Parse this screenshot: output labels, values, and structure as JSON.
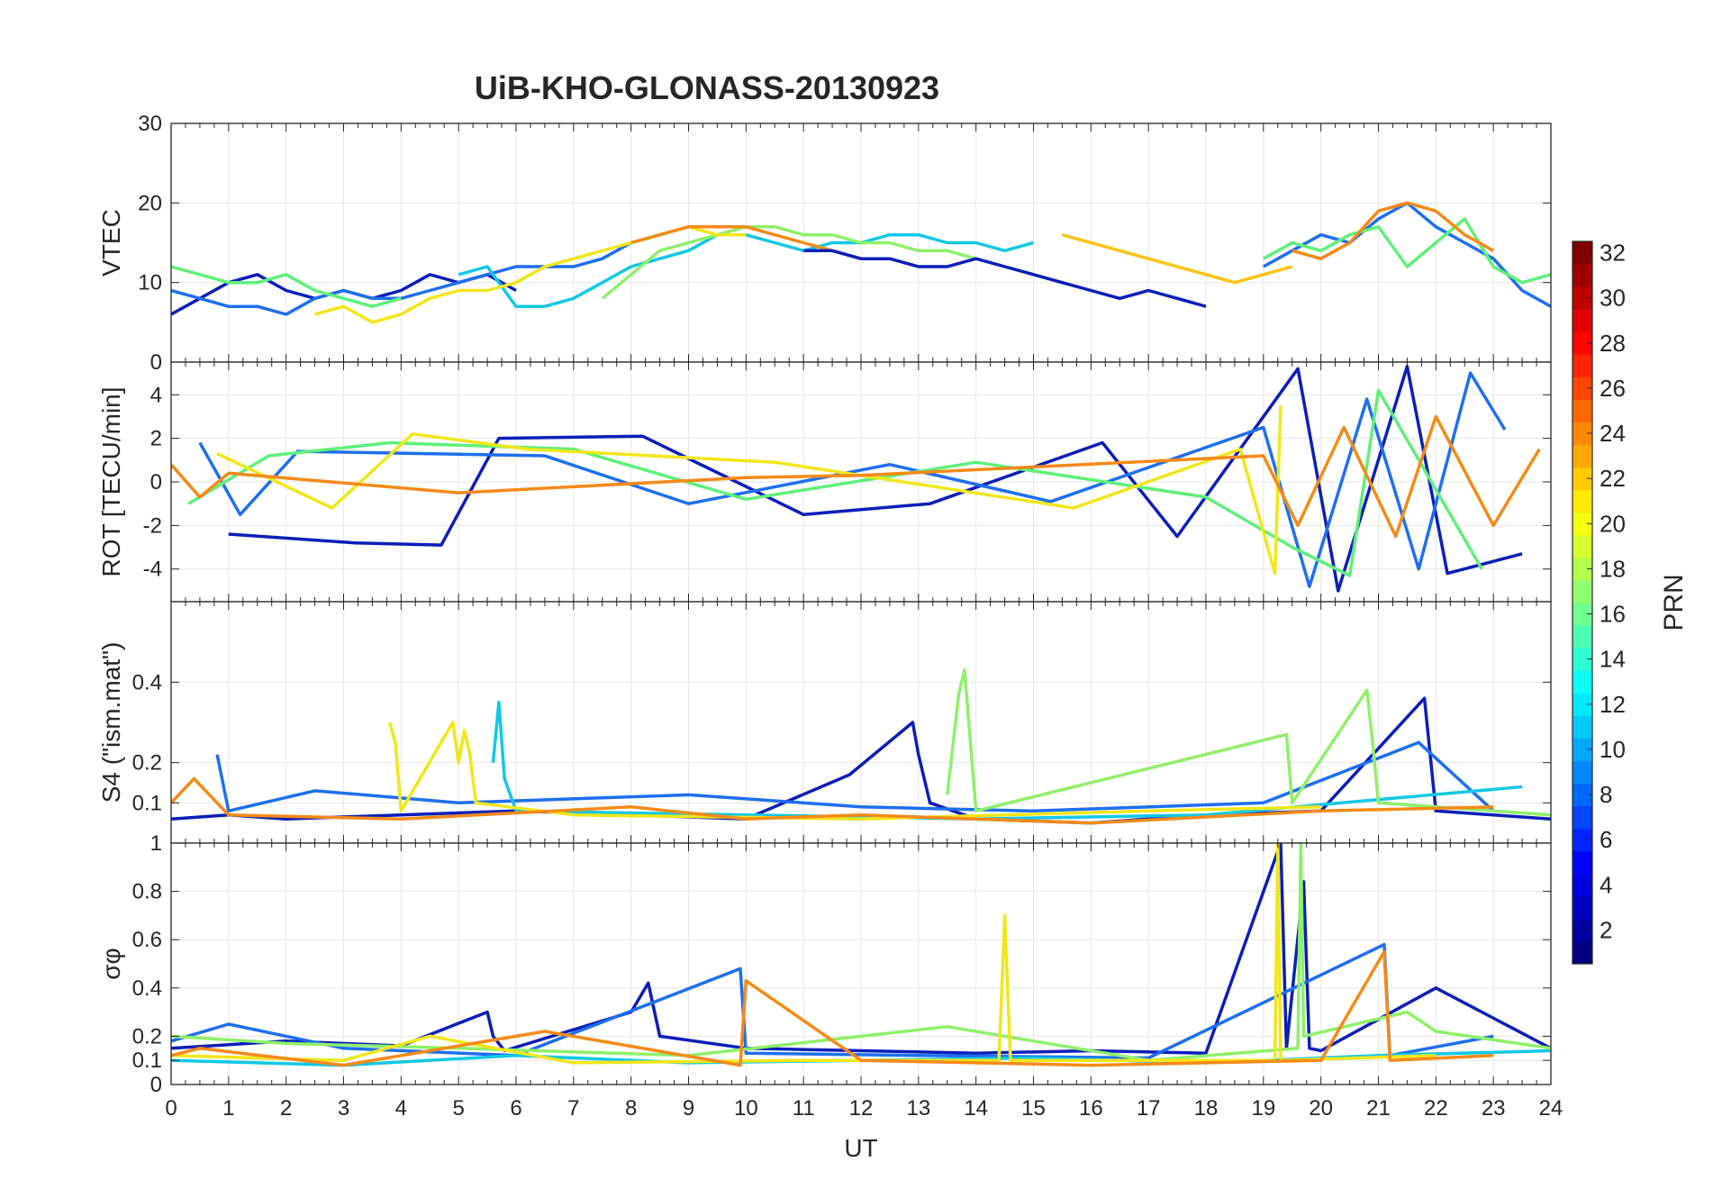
{
  "chart_data": [
    {
      "type": "line",
      "title": "UiB-KHO-GLONASS-20130923",
      "ylabel": "VTEC",
      "ylim": [
        0,
        30
      ],
      "yticks": [
        0,
        10,
        20,
        30
      ],
      "xlim": [
        0,
        24
      ],
      "grid": true,
      "series": [
        {
          "color": "#0a1fb8",
          "x": [
            0.0,
            0.5,
            1.0,
            1.5,
            2.0,
            2.5,
            3.0,
            3.5,
            4.0,
            4.5,
            5.0,
            5.5,
            6.0
          ],
          "y": [
            6,
            8,
            10,
            11,
            9,
            8,
            9,
            8,
            9,
            11,
            10,
            11,
            9
          ]
        },
        {
          "color": "#1e6ff0",
          "x": [
            0.0,
            0.5,
            1.0,
            1.5,
            2.0,
            2.5,
            3.0,
            3.5,
            4.0,
            4.5,
            5.0,
            5.5,
            6.0,
            6.5,
            7.0,
            7.5,
            8.0,
            8.5
          ],
          "y": [
            9,
            8,
            7,
            7,
            6,
            8,
            9,
            8,
            8,
            9,
            10,
            11,
            12,
            12,
            12,
            13,
            15,
            16
          ]
        },
        {
          "color": "#12c8e6",
          "x": [
            5.0,
            5.5,
            6.0,
            6.5,
            7.0,
            7.5,
            8.0,
            8.5,
            9.0,
            9.5,
            10.0,
            10.5,
            11.0,
            11.5,
            12.0,
            12.5,
            13.0,
            13.5,
            14.0,
            14.5,
            15.0
          ],
          "y": [
            11,
            12,
            7,
            7,
            8,
            10,
            12,
            13,
            14,
            16,
            16,
            15,
            14,
            15,
            15,
            16,
            16,
            15,
            15,
            14,
            15
          ]
        },
        {
          "color": "#5ff07a",
          "x": [
            0.0,
            0.5,
            1.0,
            1.5,
            2.0,
            2.5,
            3.0,
            3.5,
            4.0
          ],
          "y": [
            12,
            11,
            10,
            10,
            11,
            9,
            8,
            7,
            8
          ]
        },
        {
          "color": "#8ff06a",
          "x": [
            7.5,
            8.0,
            8.5,
            9.0,
            9.5,
            10.0,
            10.5,
            11.0,
            11.5,
            12.0,
            12.5,
            13.0,
            13.5,
            14.0
          ],
          "y": [
            8,
            11,
            14,
            15,
            16,
            17,
            17,
            16,
            16,
            15,
            15,
            14,
            14,
            13
          ]
        },
        {
          "color": "#f2e61a",
          "x": [
            2.5,
            3.0,
            3.5,
            4.0,
            4.5,
            5.0,
            5.5,
            6.0,
            6.5,
            7.0,
            7.5,
            8.0,
            8.5,
            9.0,
            9.5,
            10.0
          ],
          "y": [
            6,
            7,
            5,
            6,
            8,
            9,
            9,
            10,
            12,
            13,
            14,
            15,
            16,
            17,
            16,
            16
          ]
        },
        {
          "color": "#ffc20f",
          "x": [
            15.5,
            16.0,
            16.5,
            17.0,
            17.5,
            18.0,
            18.5,
            19.0,
            19.5
          ],
          "y": [
            16,
            15,
            14,
            13,
            12,
            11,
            10,
            11,
            12
          ]
        },
        {
          "color": "#f58a17",
          "x": [
            8.0,
            8.5,
            9.0,
            9.5,
            10.0,
            10.5,
            11.0,
            11.5,
            12.0
          ],
          "y": [
            15,
            16,
            17,
            17,
            17,
            16,
            15,
            14,
            13
          ]
        },
        {
          "color": "#0a1fb8",
          "x": [
            11.0,
            11.5,
            12.0,
            12.5,
            13.0,
            13.5,
            14.0,
            14.5,
            15.0,
            15.5,
            16.0,
            16.5,
            17.0,
            17.5,
            18.0
          ],
          "y": [
            14,
            14,
            13,
            13,
            12,
            12,
            13,
            12,
            11,
            10,
            9,
            8,
            9,
            8,
            7
          ]
        },
        {
          "color": "#1e6ff0",
          "x": [
            19.0,
            19.5,
            20.0,
            20.5,
            21.0,
            21.5,
            22.0,
            22.5,
            23.0,
            23.5,
            24.0
          ],
          "y": [
            12,
            14,
            16,
            15,
            18,
            20,
            17,
            15,
            13,
            9,
            7
          ]
        },
        {
          "color": "#5ff07a",
          "x": [
            19.0,
            19.5,
            20.0,
            20.5,
            21.0,
            21.5,
            22.0,
            22.5,
            23.0,
            23.5,
            24.0
          ],
          "y": [
            13,
            15,
            14,
            16,
            17,
            12,
            15,
            18,
            12,
            10,
            11
          ]
        },
        {
          "color": "#f58a17",
          "x": [
            19.5,
            20.0,
            20.5,
            21.0,
            21.5,
            22.0,
            22.5,
            23.0
          ],
          "y": [
            14,
            13,
            15,
            19,
            20,
            19,
            16,
            14
          ]
        }
      ]
    },
    {
      "type": "line",
      "ylabel": "ROT [TECU/min]",
      "ylim": [
        -5.5,
        5.5
      ],
      "yticks": [
        -4,
        -2,
        0,
        2,
        4
      ],
      "xlim": [
        0,
        24
      ],
      "grid": true,
      "series": [
        {
          "color": "#0a1fb8",
          "x": [
            1.0,
            3.2,
            4.7,
            5.7,
            8.2,
            11.0,
            13.2,
            16.2,
            17.5,
            19.6,
            20.3,
            21.5,
            22.2,
            23.5
          ],
          "y": [
            -2.4,
            -2.8,
            -2.9,
            2.0,
            2.1,
            -1.5,
            -1.0,
            1.8,
            -2.5,
            5.2,
            -5.0,
            5.3,
            -4.2,
            -3.3
          ]
        },
        {
          "color": "#1e6ff0",
          "x": [
            0.5,
            1.2,
            2.2,
            6.5,
            9.0,
            12.5,
            15.3,
            19.0,
            19.8,
            20.8,
            21.7,
            22.6,
            23.2
          ],
          "y": [
            1.8,
            -1.5,
            1.4,
            1.2,
            -1.0,
            0.8,
            -0.9,
            2.5,
            -4.8,
            3.8,
            -4.0,
            5.0,
            2.4
          ]
        },
        {
          "color": "#5ff07a",
          "x": [
            0.3,
            1.7,
            3.8,
            7.0,
            10.0,
            14.0,
            18.0,
            19.5,
            20.5,
            21.0,
            22.8
          ],
          "y": [
            -1.0,
            1.2,
            1.8,
            1.5,
            -0.8,
            0.9,
            -0.7,
            -3.0,
            -4.3,
            4.2,
            -4.0
          ]
        },
        {
          "color": "#f2e61a",
          "x": [
            0.8,
            2.8,
            4.2,
            6.2,
            10.5,
            15.7,
            18.6,
            19.2,
            19.3
          ],
          "y": [
            1.3,
            -1.2,
            2.2,
            1.5,
            0.9,
            -1.2,
            1.5,
            -4.2,
            3.5
          ]
        },
        {
          "color": "#f58a17",
          "x": [
            0.0,
            0.5,
            1.0,
            5.0,
            10.0,
            12.0,
            19.0,
            19.6,
            20.4,
            21.3,
            22.0,
            23.0,
            23.8
          ],
          "y": [
            0.8,
            -0.7,
            0.4,
            -0.5,
            0.2,
            0.3,
            1.2,
            -2.0,
            2.5,
            -2.5,
            3.0,
            -2.0,
            1.5
          ]
        }
      ]
    },
    {
      "type": "line",
      "ylabel": "S4 (\"ism.mat\")",
      "ylim": [
        0,
        0.6
      ],
      "yticks": [
        0.1,
        0.2,
        0.4
      ],
      "xlim": [
        0,
        24
      ],
      "grid": true,
      "series": [
        {
          "color": "#0a1fb8",
          "x": [
            0.0,
            1.0,
            2.0,
            4.0,
            6.0,
            8.0,
            10.0,
            11.8,
            12.9,
            13.0,
            13.2,
            14.0,
            16.0,
            18.0,
            20.0,
            21.8,
            22.0,
            24.0
          ],
          "y": [
            0.06,
            0.07,
            0.06,
            0.07,
            0.08,
            0.07,
            0.06,
            0.17,
            0.3,
            0.22,
            0.1,
            0.06,
            0.05,
            0.07,
            0.08,
            0.36,
            0.08,
            0.06
          ]
        },
        {
          "color": "#1e6ff0",
          "x": [
            0.8,
            1.0,
            2.5,
            5.0,
            9.0,
            12.0,
            15.0,
            19.0,
            21.7,
            23.0
          ],
          "y": [
            0.22,
            0.08,
            0.13,
            0.1,
            0.12,
            0.09,
            0.08,
            0.1,
            0.25,
            0.08
          ]
        },
        {
          "color": "#12c8e6",
          "x": [
            5.6,
            5.7,
            5.8,
            6.0,
            10.0,
            14.0,
            18.0,
            23.5
          ],
          "y": [
            0.2,
            0.35,
            0.16,
            0.08,
            0.07,
            0.06,
            0.07,
            0.14
          ]
        },
        {
          "color": "#8ff06a",
          "x": [
            13.5,
            13.7,
            13.8,
            14.0,
            19.4,
            19.5,
            20.8,
            20.9,
            21.0,
            24.0
          ],
          "y": [
            0.12,
            0.37,
            0.43,
            0.08,
            0.27,
            0.1,
            0.38,
            0.25,
            0.1,
            0.07
          ]
        },
        {
          "color": "#f2e61a",
          "x": [
            3.8,
            3.9,
            4.0,
            4.9,
            5.0,
            5.1,
            5.2,
            5.3,
            7.0,
            12.0,
            17.0,
            20.0
          ],
          "y": [
            0.3,
            0.25,
            0.08,
            0.3,
            0.2,
            0.28,
            0.22,
            0.1,
            0.07,
            0.06,
            0.08,
            0.09
          ]
        },
        {
          "color": "#f58a17",
          "x": [
            0.0,
            0.4,
            1.0,
            4.0,
            8.0,
            10.0,
            12.0,
            16.0,
            20.0,
            23.0
          ],
          "y": [
            0.1,
            0.16,
            0.07,
            0.06,
            0.09,
            0.06,
            0.07,
            0.05,
            0.08,
            0.09
          ]
        }
      ]
    },
    {
      "type": "line",
      "ylabel": "σφ",
      "xlabel": "UT",
      "ylim": [
        0,
        1
      ],
      "yticks": [
        0,
        0.1,
        0.2,
        0.4,
        0.6,
        0.8,
        1
      ],
      "xlim": [
        0,
        24
      ],
      "xticks": [
        0,
        1,
        2,
        3,
        4,
        5,
        6,
        7,
        8,
        9,
        10,
        11,
        12,
        13,
        14,
        15,
        16,
        17,
        18,
        19,
        20,
        21,
        22,
        23,
        24
      ],
      "grid": true,
      "series": [
        {
          "color": "#0a1fb8",
          "x": [
            0.0,
            2.0,
            4.0,
            5.5,
            5.6,
            5.8,
            8.0,
            8.3,
            8.5,
            10.0,
            12.0,
            14.0,
            16.0,
            18.0,
            19.3,
            19.4,
            19.7,
            19.8,
            20.0,
            22.0,
            24.0
          ],
          "y": [
            0.15,
            0.18,
            0.16,
            0.3,
            0.2,
            0.14,
            0.3,
            0.42,
            0.2,
            0.15,
            0.14,
            0.13,
            0.14,
            0.13,
            1.0,
            0.15,
            0.84,
            0.15,
            0.14,
            0.4,
            0.15
          ]
        },
        {
          "color": "#1e6ff0",
          "x": [
            0.0,
            1.0,
            3.0,
            6.0,
            9.9,
            10.0,
            13.0,
            17.0,
            21.1,
            21.2,
            23.0
          ],
          "y": [
            0.18,
            0.25,
            0.15,
            0.12,
            0.48,
            0.13,
            0.12,
            0.11,
            0.58,
            0.12,
            0.2
          ]
        },
        {
          "color": "#12c8e6",
          "x": [
            0.0,
            3.0,
            6.0,
            9.0,
            12.0,
            15.0,
            18.0,
            21.0,
            24.0
          ],
          "y": [
            0.1,
            0.08,
            0.12,
            0.09,
            0.1,
            0.11,
            0.09,
            0.12,
            0.14
          ]
        },
        {
          "color": "#8ff06a",
          "x": [
            0.0,
            2.0,
            5.0,
            9.0,
            13.5,
            17.0,
            19.6,
            19.65,
            19.7,
            21.5,
            22.0,
            24.0
          ],
          "y": [
            0.2,
            0.17,
            0.15,
            0.12,
            0.24,
            0.1,
            0.15,
            1.0,
            0.2,
            0.3,
            0.22,
            0.15
          ]
        },
        {
          "color": "#f2e61a",
          "x": [
            0.0,
            3.0,
            4.5,
            7.0,
            11.0,
            14.4,
            14.5,
            14.6,
            17.0,
            19.2,
            19.25,
            19.3,
            22.0
          ],
          "y": [
            0.12,
            0.1,
            0.2,
            0.09,
            0.1,
            0.1,
            0.7,
            0.1,
            0.1,
            0.1,
            1.0,
            0.1,
            0.12
          ]
        },
        {
          "color": "#f58a17",
          "x": [
            0.0,
            0.5,
            3.0,
            6.5,
            9.9,
            10.0,
            12.0,
            16.0,
            20.0,
            21.1,
            21.2,
            23.0
          ],
          "y": [
            0.12,
            0.15,
            0.08,
            0.22,
            0.08,
            0.43,
            0.1,
            0.08,
            0.1,
            0.55,
            0.1,
            0.12
          ]
        }
      ]
    }
  ],
  "colorbar": {
    "label": "PRN",
    "ticks": [
      2,
      4,
      6,
      8,
      10,
      12,
      14,
      16,
      18,
      20,
      22,
      24,
      26,
      28,
      30,
      32
    ],
    "range": [
      1,
      32
    ],
    "colormap": "jet"
  }
}
